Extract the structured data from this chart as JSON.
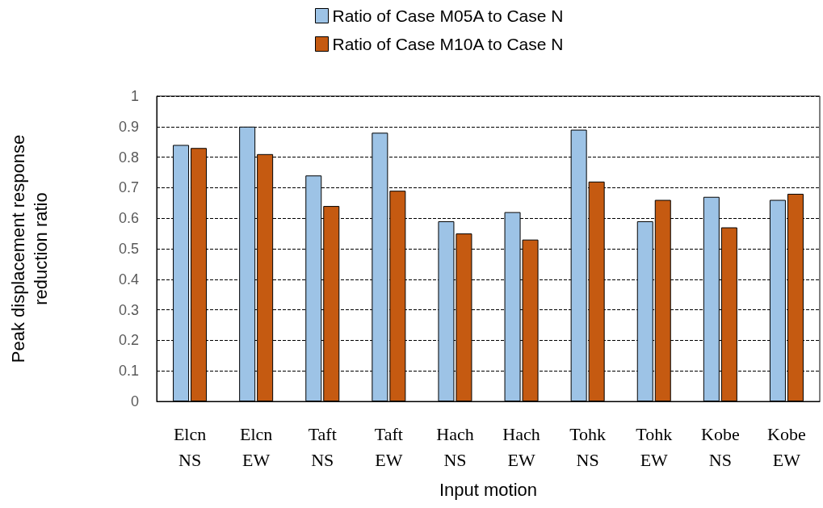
{
  "chart_data": {
    "type": "bar",
    "xlabel": "Input motion",
    "ylabel": "Peak displacement response\nreduction ratio",
    "categories": [
      "Elcn\nNS",
      "Elcn\nEW",
      "Taft\nNS",
      "Taft\nEW",
      "Hach\nNS",
      "Hach\nEW",
      "Tohk\nNS",
      "Tohk\nEW",
      "Kobe\nNS",
      "Kobe\nEW"
    ],
    "series": [
      {
        "name": "Ratio of Case M05A to Case N",
        "color": "#9dc3e6",
        "values": [
          0.84,
          0.9,
          0.74,
          0.88,
          0.59,
          0.62,
          0.89,
          0.59,
          0.67,
          0.66
        ]
      },
      {
        "name": "Ratio of Case M10A to Case N",
        "color": "#c55a11",
        "values": [
          0.83,
          0.81,
          0.64,
          0.69,
          0.55,
          0.53,
          0.72,
          0.66,
          0.57,
          0.68
        ]
      }
    ],
    "ylim": [
      0,
      1
    ],
    "yticks": [
      0,
      0.1,
      0.2,
      0.3,
      0.4,
      0.5,
      0.6,
      0.7,
      0.8,
      0.9,
      1
    ],
    "grid": "y",
    "legend": "top"
  }
}
